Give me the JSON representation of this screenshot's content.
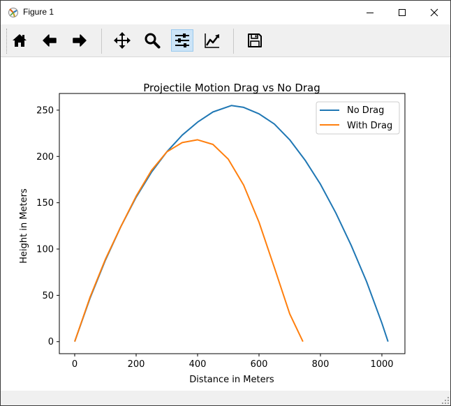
{
  "window": {
    "title": "Figure 1",
    "controls": [
      "minimize",
      "maximize",
      "close"
    ]
  },
  "toolbar": {
    "buttons": [
      {
        "name": "home",
        "icon": "home-icon",
        "active": false
      },
      {
        "name": "back",
        "icon": "arrow-left-icon",
        "active": false
      },
      {
        "name": "forward",
        "icon": "arrow-right-icon",
        "active": false
      },
      {
        "name": "pan",
        "icon": "move-arrows-icon",
        "active": false
      },
      {
        "name": "zoom",
        "icon": "magnifier-icon",
        "active": false
      },
      {
        "name": "configure-subplots",
        "icon": "sliders-icon",
        "active": true
      },
      {
        "name": "edit-axis",
        "icon": "line-chart-icon",
        "active": false
      },
      {
        "name": "save",
        "icon": "floppy-disk-icon",
        "active": false
      }
    ]
  },
  "chart_data": {
    "type": "line",
    "title": "Projectile Motion Drag vs No Drag",
    "xlabel": "Distance in Meters",
    "ylabel": "Height in Meters",
    "xlim": [
      -50,
      1075
    ],
    "ylim": [
      -13,
      268
    ],
    "xticks": [
      0,
      200,
      400,
      600,
      800,
      1000
    ],
    "yticks": [
      0,
      50,
      100,
      150,
      200,
      250
    ],
    "xtick_labels": [
      "0",
      "200",
      "400",
      "600",
      "800",
      "1000"
    ],
    "ytick_labels": [
      "0",
      "50",
      "100",
      "150",
      "200",
      "250"
    ],
    "grid": false,
    "legend": "upper right",
    "series": [
      {
        "name": "No Drag",
        "color": "#1f77b4",
        "x": [
          0,
          50,
          100,
          150,
          200,
          250,
          300,
          350,
          400,
          450,
          510,
          550,
          600,
          650,
          700,
          750,
          800,
          850,
          900,
          950,
          1000,
          1020
        ],
        "y": [
          0,
          47,
          88,
          124,
          156,
          183,
          205,
          223,
          237,
          248,
          255,
          253,
          246,
          235,
          218,
          196,
          170,
          139,
          104,
          65,
          20,
          0
        ]
      },
      {
        "name": "With Drag",
        "color": "#ff7f0e",
        "x": [
          0,
          50,
          100,
          150,
          200,
          250,
          300,
          350,
          400,
          450,
          500,
          550,
          600,
          650,
          700,
          743
        ],
        "y": [
          0,
          48,
          89,
          124,
          157,
          185,
          205,
          215,
          218,
          213,
          197,
          169,
          129,
          80,
          30,
          0
        ]
      }
    ]
  }
}
